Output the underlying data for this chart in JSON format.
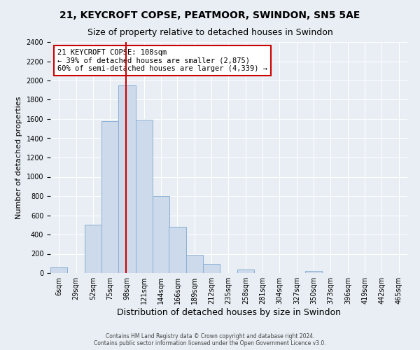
{
  "title": "21, KEYCROFT COPSE, PEATMOOR, SWINDON, SN5 5AE",
  "subtitle": "Size of property relative to detached houses in Swindon",
  "xlabel": "Distribution of detached houses by size in Swindon",
  "ylabel": "Number of detached properties",
  "bar_color": "#ccdaeb",
  "bar_edge_color": "#8aafd4",
  "bin_labels": [
    "6sqm",
    "29sqm",
    "52sqm",
    "75sqm",
    "98sqm",
    "121sqm",
    "144sqm",
    "166sqm",
    "189sqm",
    "212sqm",
    "235sqm",
    "258sqm",
    "281sqm",
    "304sqm",
    "327sqm",
    "350sqm",
    "373sqm",
    "396sqm",
    "419sqm",
    "442sqm",
    "465sqm"
  ],
  "bin_edges": [
    6,
    29,
    52,
    75,
    98,
    121,
    144,
    166,
    189,
    212,
    235,
    258,
    281,
    304,
    327,
    350,
    373,
    396,
    419,
    442,
    465
  ],
  "bar_heights": [
    55,
    0,
    500,
    1575,
    1950,
    1590,
    800,
    480,
    190,
    95,
    0,
    35,
    0,
    0,
    0,
    20,
    0,
    0,
    0,
    0
  ],
  "ylim": [
    0,
    2400
  ],
  "yticks": [
    0,
    200,
    400,
    600,
    800,
    1000,
    1200,
    1400,
    1600,
    1800,
    2000,
    2200,
    2400
  ],
  "vline_x": 108,
  "vline_color": "#cc0000",
  "annotation_title": "21 KEYCROFT COPSE: 108sqm",
  "annotation_line1": "← 39% of detached houses are smaller (2,875)",
  "annotation_line2": "60% of semi-detached houses are larger (4,339) →",
  "annotation_box_color": "#ffffff",
  "annotation_box_edge": "#cc0000",
  "footer1": "Contains HM Land Registry data © Crown copyright and database right 2024.",
  "footer2": "Contains public sector information licensed under the Open Government Licence v3.0.",
  "background_color": "#e8eef4",
  "grid_color": "#ffffff",
  "title_fontsize": 10,
  "subtitle_fontsize": 9,
  "xlabel_fontsize": 9,
  "ylabel_fontsize": 8,
  "tick_fontsize": 7,
  "annotation_fontsize": 7.5,
  "footer_fontsize": 5.5
}
